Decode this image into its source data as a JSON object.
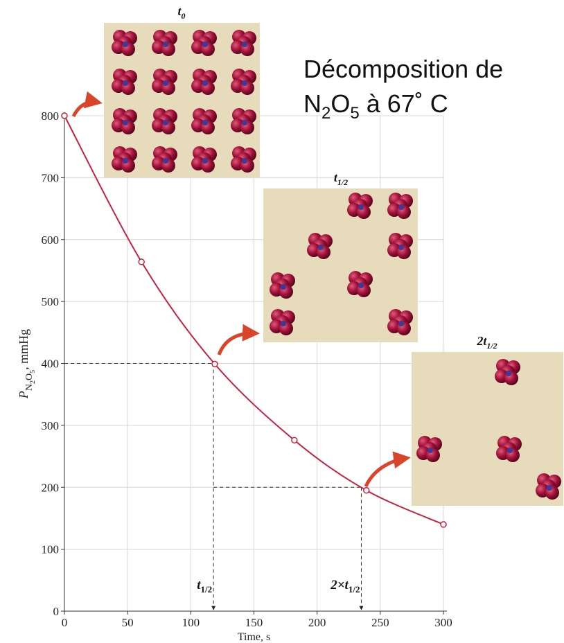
{
  "chart_data": {
    "type": "line",
    "title": [
      "Décomposition de",
      [
        "N",
        "2",
        "O",
        "5",
        " à 67˚ C"
      ]
    ],
    "x_label": "Time, s",
    "y_label": [
      "P",
      "N",
      "2",
      "O",
      "5",
      ", mmHg"
    ],
    "x": [
      0,
      61,
      119,
      182,
      239,
      300
    ],
    "series": [
      {
        "color": "#c8203c",
        "values": [
          800,
          564,
          399,
          276,
          195,
          140
        ]
      }
    ],
    "xlim": [
      0,
      300
    ],
    "ylim": [
      0,
      800
    ],
    "xticks": [
      0,
      50,
      100,
      150,
      200,
      250,
      300
    ],
    "yticks": [
      0,
      100,
      200,
      300,
      400,
      500,
      600,
      700,
      800
    ],
    "grid": true,
    "reference_lines": [
      {
        "x": 118,
        "y": 400,
        "label": [
          "t",
          "1/2"
        ]
      },
      {
        "x": 235,
        "y": 200,
        "label": [
          "2×t",
          "1/2"
        ]
      }
    ],
    "snapshots": [
      {
        "label": [
          "t",
          "0"
        ]
      },
      {
        "label": [
          "t",
          "1/2"
        ]
      },
      {
        "label": [
          "2t",
          "1/2"
        ]
      }
    ]
  }
}
